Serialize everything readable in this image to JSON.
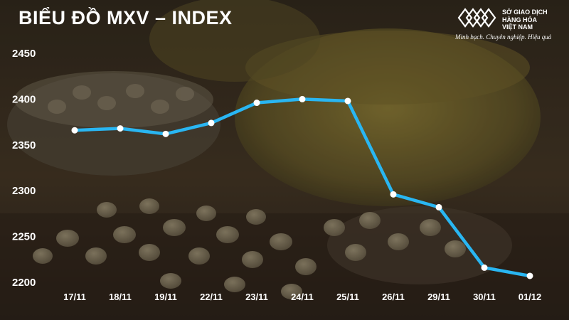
{
  "title": "BIỂU ĐỒ MXV – INDEX",
  "brand": {
    "name_lines": [
      "SỞ GIAO DỊCH",
      "HÀNG HÓA",
      "VIỆT NAM"
    ],
    "slogan": "Minh bạch. Chuyên nghiệp. Hiệu quả"
  },
  "colors": {
    "line": "#29B6F2",
    "marker": "#ffffff",
    "text": "#ffffff"
  },
  "chart_data": {
    "type": "line",
    "title": "BIỂU ĐỒ MXV – INDEX",
    "xlabel": "",
    "ylabel": "",
    "categories": [
      "17/11",
      "18/11",
      "19/11",
      "22/11",
      "23/11",
      "24/11",
      "25/11",
      "26/11",
      "29/11",
      "30/11",
      "01/12"
    ],
    "series": [
      {
        "values": [
          2366,
          2368,
          2362,
          2374,
          2396,
          2400,
          2398,
          2296,
          2282,
          2216,
          2207
        ]
      }
    ],
    "ylim": [
      2200,
      2450
    ],
    "yticks": [
      2200,
      2250,
      2300,
      2350,
      2400,
      2450
    ],
    "grid": false,
    "legend": "none"
  }
}
